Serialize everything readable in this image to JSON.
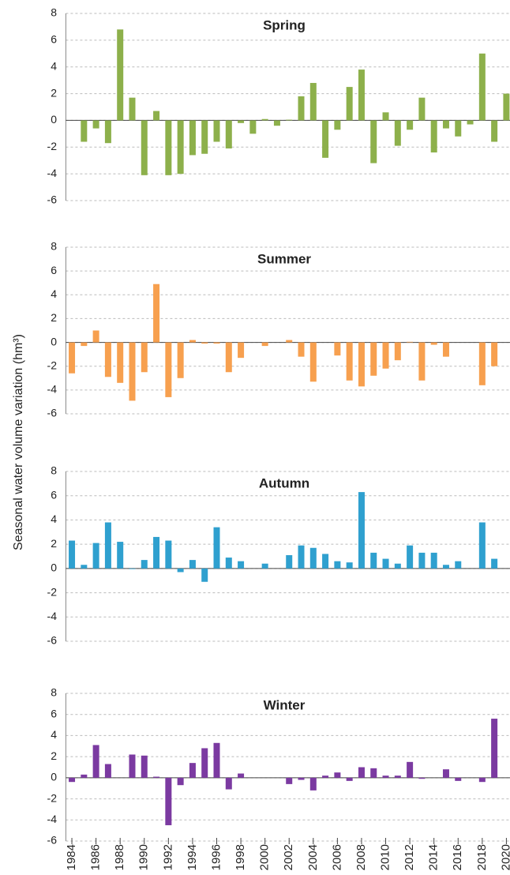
{
  "y_axis_label": "Seasonal water volume variation (hm³)",
  "chart_data": [
    {
      "type": "bar",
      "title": "Spring",
      "color": "#8db04b",
      "x": [
        1985,
        1986,
        1987,
        1988,
        1989,
        1990,
        1991,
        1992,
        1993,
        1994,
        1995,
        1996,
        1997,
        1998,
        1999,
        2000,
        2001,
        2002,
        2003,
        2004,
        2005,
        2006,
        2007,
        2008,
        2009,
        2010,
        2011,
        2012,
        2013,
        2014,
        2015,
        2016,
        2017,
        2018,
        2019,
        2020
      ],
      "values": [
        -1.6,
        -0.6,
        -1.7,
        6.8,
        1.7,
        -4.1,
        0.7,
        -4.1,
        -4,
        -2.6,
        -2.5,
        -1.6,
        -2.1,
        -0.2,
        -1,
        0.1,
        -0.4,
        0.05,
        1.8,
        2.8,
        -2.8,
        -0.7,
        2.5,
        3.8,
        -3.2,
        0.6,
        -1.9,
        -0.7,
        1.7,
        -2.4,
        -0.6,
        -1.2,
        -0.3,
        5,
        -1.6,
        2
      ],
      "xlim": [
        1983.5,
        2020.3
      ],
      "ylim": [
        -6,
        8
      ],
      "yticks": [
        -6,
        -4,
        -2,
        0,
        2,
        4,
        6,
        8
      ],
      "grid": true
    },
    {
      "type": "bar",
      "title": "Summer",
      "color": "#f7a04f",
      "x": [
        1984,
        1985,
        1986,
        1987,
        1988,
        1989,
        1990,
        1991,
        1992,
        1993,
        1994,
        1995,
        1996,
        1997,
        1998,
        1999,
        2000,
        2001,
        2002,
        2003,
        2004,
        2005,
        2006,
        2007,
        2008,
        2009,
        2010,
        2011,
        2012,
        2013,
        2014,
        2015,
        2016,
        2017,
        2018,
        2019
      ],
      "values": [
        -2.6,
        -0.3,
        1,
        -2.9,
        -3.4,
        -4.9,
        -2.5,
        4.9,
        -4.6,
        -3,
        0.2,
        -0.1,
        -0.1,
        -2.5,
        -1.3,
        0,
        -0.3,
        0,
        0.2,
        -1.2,
        -3.3,
        0,
        -1.1,
        -3.2,
        -3.7,
        -2.8,
        -2.2,
        -1.5,
        0.05,
        -3.2,
        -0.2,
        -1.2,
        0,
        0,
        -3.6,
        -2
      ],
      "xlim": [
        1983.5,
        2020.3
      ],
      "ylim": [
        -6,
        8
      ],
      "yticks": [
        -6,
        -4,
        -2,
        0,
        2,
        4,
        6,
        8
      ],
      "grid": true
    },
    {
      "type": "bar",
      "title": "Autumn",
      "color": "#2fa0cf",
      "x": [
        1984,
        1985,
        1986,
        1987,
        1988,
        1989,
        1990,
        1991,
        1992,
        1993,
        1994,
        1995,
        1996,
        1997,
        1998,
        1999,
        2000,
        2001,
        2002,
        2003,
        2004,
        2005,
        2006,
        2007,
        2008,
        2009,
        2010,
        2011,
        2012,
        2013,
        2014,
        2015,
        2016,
        2017,
        2018,
        2019
      ],
      "values": [
        2.3,
        0.3,
        2.1,
        3.8,
        2.2,
        -0.05,
        0.7,
        2.6,
        2.3,
        -0.3,
        0.7,
        -1.1,
        3.4,
        0.9,
        0.6,
        0,
        0.4,
        0,
        1.1,
        1.9,
        1.7,
        1.2,
        0.6,
        0.5,
        6.3,
        1.3,
        0.8,
        0.4,
        1.9,
        1.3,
        1.3,
        0.3,
        0.6,
        0,
        3.8,
        0.8
      ],
      "xlim": [
        1983.5,
        2020.3
      ],
      "ylim": [
        -6,
        8
      ],
      "yticks": [
        -6,
        -4,
        -2,
        0,
        2,
        4,
        6,
        8
      ],
      "grid": true
    },
    {
      "type": "bar",
      "title": "Winter",
      "color": "#7b3aa1",
      "x": [
        1984,
        1985,
        1986,
        1987,
        1988,
        1989,
        1990,
        1991,
        1992,
        1993,
        1994,
        1995,
        1996,
        1997,
        1998,
        1999,
        2000,
        2001,
        2002,
        2003,
        2004,
        2005,
        2006,
        2007,
        2008,
        2009,
        2010,
        2011,
        2012,
        2013,
        2014,
        2015,
        2016,
        2017,
        2018,
        2019
      ],
      "values": [
        -0.4,
        0.3,
        3.1,
        1.3,
        0,
        2.2,
        2.1,
        0.1,
        -4.5,
        -0.7,
        1.4,
        2.8,
        3.3,
        -1.1,
        0.4,
        0,
        0,
        0,
        -0.6,
        -0.2,
        -1.2,
        0.2,
        0.5,
        -0.3,
        1,
        0.9,
        0.2,
        0.2,
        1.5,
        -0.1,
        0,
        0.8,
        -0.3,
        0,
        -0.4,
        5.6
      ],
      "xlim": [
        1983.5,
        2020.3
      ],
      "ylim": [
        -6,
        8
      ],
      "yticks": [
        -6,
        -4,
        -2,
        0,
        2,
        4,
        6,
        8
      ],
      "xticks": [
        1984,
        1986,
        1988,
        1990,
        1992,
        1994,
        1996,
        1998,
        2000,
        2002,
        2004,
        2006,
        2008,
        2010,
        2012,
        2014,
        2016,
        2018,
        2020
      ],
      "grid": true
    }
  ]
}
